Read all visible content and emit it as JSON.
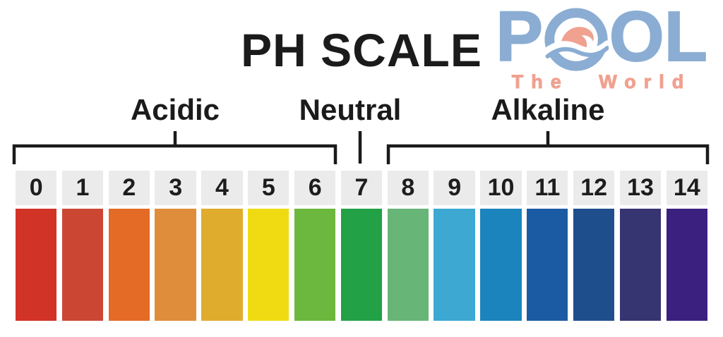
{
  "title": "PH SCALE",
  "logo": {
    "letter_p": "P",
    "letters_ol": "OL",
    "subtitle": "The World",
    "colors": {
      "blue": "#8badd3",
      "salmon": "#f0a190"
    }
  },
  "chart_data": {
    "type": "scale",
    "title": "PH SCALE",
    "orientation": "horizontal",
    "categories": [
      "0",
      "1",
      "2",
      "3",
      "4",
      "5",
      "6",
      "7",
      "8",
      "9",
      "10",
      "11",
      "12",
      "13",
      "14"
    ],
    "items": [
      {
        "value": "0",
        "color": "#d23327"
      },
      {
        "value": "1",
        "color": "#cc4733"
      },
      {
        "value": "2",
        "color": "#e36b26"
      },
      {
        "value": "3",
        "color": "#df8d3a"
      },
      {
        "value": "4",
        "color": "#e0ac2e"
      },
      {
        "value": "5",
        "color": "#f0db12"
      },
      {
        "value": "6",
        "color": "#6cb83e"
      },
      {
        "value": "7",
        "color": "#22a146"
      },
      {
        "value": "8",
        "color": "#68b578"
      },
      {
        "value": "9",
        "color": "#3da8d2"
      },
      {
        "value": "10",
        "color": "#1c84bc"
      },
      {
        "value": "11",
        "color": "#1b5ba4"
      },
      {
        "value": "12",
        "color": "#1f4e8c"
      },
      {
        "value": "13",
        "color": "#373472"
      },
      {
        "value": "14",
        "color": "#3b2080"
      }
    ],
    "regions": [
      {
        "label": "Acidic",
        "from": 0,
        "to": 6
      },
      {
        "label": "Neutral",
        "from": 7,
        "to": 7
      },
      {
        "label": "Alkaline",
        "from": 8,
        "to": 14
      }
    ],
    "label_box_color": "#ebebeb"
  }
}
